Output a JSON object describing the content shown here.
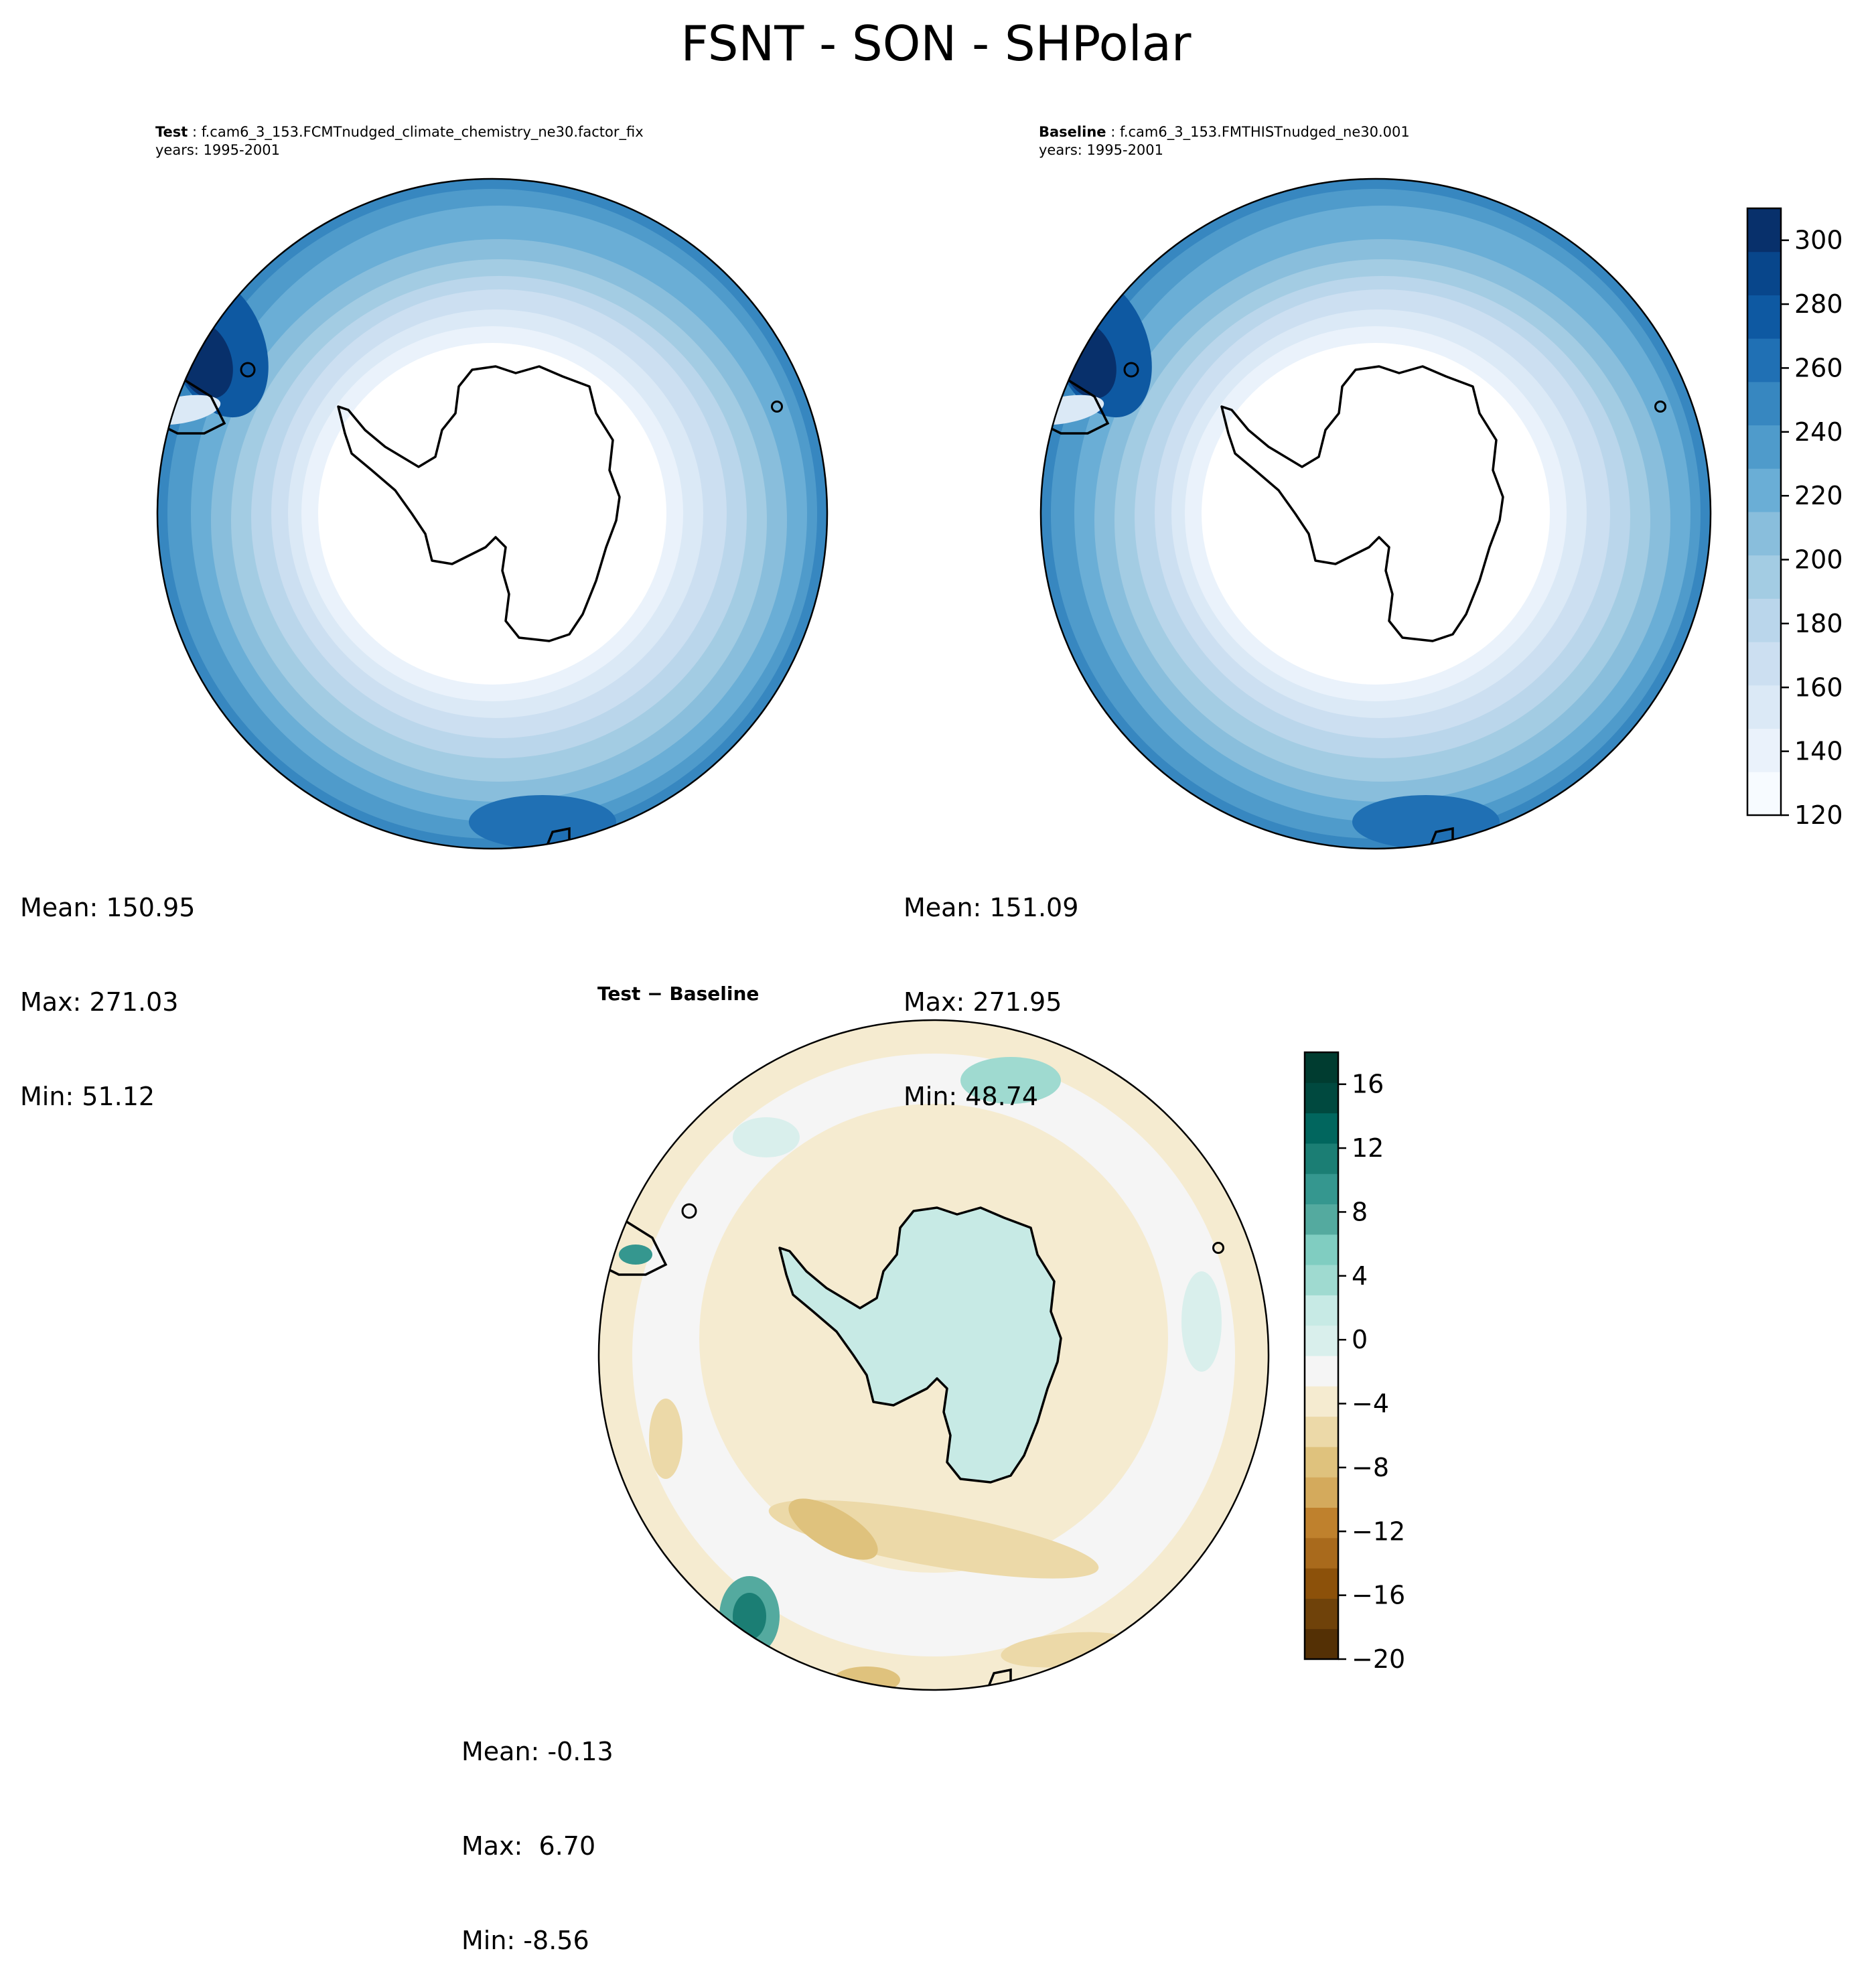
{
  "title": "FSNT - SON - SHPolar",
  "test_panel": {
    "label": "Test",
    "case": "f.cam6_3_153.FCMTnudged_climate_chemistry_ne30.factor_fix",
    "years": "years: 1995-2001",
    "stats": {
      "mean": "Mean: 150.95",
      "max": "Max: 271.03",
      "min": "Min: 51.12"
    }
  },
  "baseline_panel": {
    "label": "Baseline",
    "case": "f.cam6_3_153.FMTHISTnudged_ne30.001",
    "years": "years: 1995-2001",
    "stats": {
      "mean": "Mean: 151.09",
      "max": "Max: 271.95",
      "min": "Min: 48.74"
    }
  },
  "diff_panel": {
    "title_left": "Test",
    "title_sep": " − ",
    "title_right": "Baseline",
    "stats": {
      "mean": "Mean: -0.13",
      "max": "Max:  6.70",
      "min": "Min: -8.56"
    }
  },
  "colors": {
    "coast": "#000000",
    "blues": [
      "#f7fbff",
      "#eaf2fb",
      "#dbe9f6",
      "#ccdff1",
      "#bad6eb",
      "#a3cce3",
      "#89bedc",
      "#6aaed6",
      "#4f9bcb",
      "#3787c0",
      "#2070b4",
      "#0e59a2",
      "#08468b",
      "#08306b"
    ],
    "brbg": [
      "#543005",
      "#6f420a",
      "#8c510a",
      "#a96a1c",
      "#bf812d",
      "#d4aa5c",
      "#dfc27d",
      "#ecd9a8",
      "#f5ebd0",
      "#f5f5f5",
      "#d9efec",
      "#c7eae5",
      "#9fdad0",
      "#80cdc1",
      "#54aa9f",
      "#35978f",
      "#1b7e74",
      "#01665e",
      "#00493f",
      "#003c30"
    ]
  },
  "chart_data": [
    {
      "type": "heatmap",
      "name": "Test",
      "projection": "south polar stereographic",
      "colorbar": {
        "min": 120,
        "max": 310,
        "ticks": [
          120,
          140,
          160,
          180,
          200,
          220,
          240,
          260,
          280,
          300
        ],
        "cmap": "Blues"
      },
      "stats": {
        "mean": 150.95,
        "max": 271.03,
        "min": 51.12
      }
    },
    {
      "type": "heatmap",
      "name": "Baseline",
      "projection": "south polar stereographic",
      "colorbar": {
        "min": 120,
        "max": 310,
        "ticks": [
          120,
          140,
          160,
          180,
          200,
          220,
          240,
          260,
          280,
          300
        ],
        "cmap": "Blues"
      },
      "stats": {
        "mean": 151.09,
        "max": 271.95,
        "min": 48.74
      }
    },
    {
      "type": "heatmap",
      "name": "Test − Baseline",
      "projection": "south polar stereographic",
      "colorbar": {
        "min": -20,
        "max": 18,
        "ticks": [
          -20,
          -16,
          -12,
          -8,
          -4,
          0,
          4,
          8,
          12,
          16
        ],
        "tick_labels": [
          "−20",
          "−16",
          "−12",
          "−8",
          "−4",
          "0",
          "4",
          "8",
          "12",
          "16"
        ],
        "cmap": "BrBG"
      },
      "stats": {
        "mean": -0.13,
        "max": 6.7,
        "min": -8.56
      }
    }
  ]
}
